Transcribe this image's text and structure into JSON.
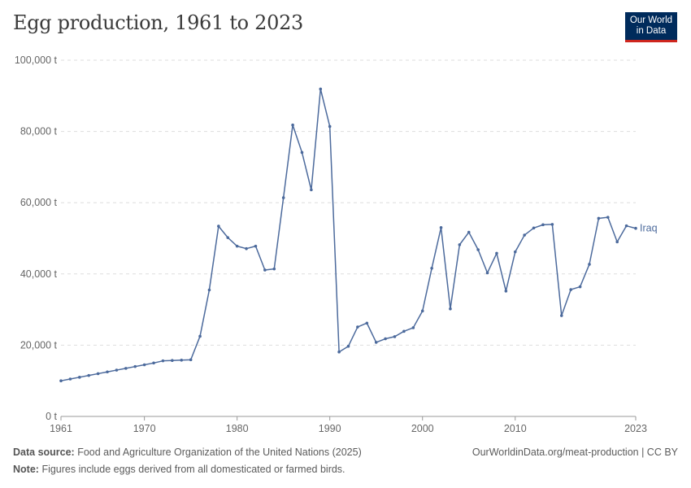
{
  "title": "Egg production, 1961 to 2023",
  "logo": {
    "line1": "Our World",
    "line2": "in Data"
  },
  "footer": {
    "source_label": "Data source:",
    "source_text": "Food and Agriculture Organization of the United Nations (2025)",
    "note_label": "Note:",
    "note_text": "Figures include eggs derived from all domesticated or farmed birds.",
    "url": "OurWorldinData.org/meat-production | CC BY"
  },
  "chart_data": {
    "type": "line",
    "title": "Egg production, 1961 to 2023",
    "xlim": [
      1961,
      2023
    ],
    "ylim": [
      0,
      100000
    ],
    "x_ticks": [
      1961,
      1970,
      1980,
      1990,
      2000,
      2010,
      2023
    ],
    "y_ticks": [
      0,
      20000,
      40000,
      60000,
      80000,
      100000
    ],
    "y_tick_labels": [
      "0 t",
      "20,000 t",
      "40,000 t",
      "60,000 t",
      "80,000 t",
      "100,000 t"
    ],
    "grid": "horizontal dashed",
    "line_color": "#4c6a9c",
    "series": [
      {
        "name": "Iraq",
        "x": [
          1961,
          1962,
          1963,
          1964,
          1965,
          1966,
          1967,
          1968,
          1969,
          1970,
          1971,
          1972,
          1973,
          1974,
          1975,
          1976,
          1977,
          1978,
          1979,
          1980,
          1981,
          1982,
          1983,
          1984,
          1985,
          1986,
          1987,
          1988,
          1989,
          1990,
          1991,
          1992,
          1993,
          1994,
          1995,
          1996,
          1997,
          1998,
          1999,
          2000,
          2001,
          2002,
          2003,
          2004,
          2005,
          2006,
          2007,
          2008,
          2009,
          2010,
          2011,
          2012,
          2013,
          2014,
          2015,
          2016,
          2017,
          2018,
          2019,
          2020,
          2021,
          2022,
          2023
        ],
        "y": [
          10000,
          10500,
          11000,
          11500,
          12000,
          12500,
          13000,
          13500,
          14000,
          14500,
          15000,
          15600,
          15700,
          15800,
          15900,
          22500,
          35500,
          53400,
          50200,
          47800,
          47100,
          47800,
          41100,
          41400,
          61400,
          81800,
          74100,
          63600,
          91900,
          81400,
          18100,
          19700,
          25100,
          26200,
          20800,
          21800,
          22400,
          23900,
          24900,
          29600,
          41600,
          53000,
          30200,
          48200,
          51700,
          46800,
          40300,
          45800,
          35200,
          46200,
          50900,
          52900,
          53800,
          53900,
          28300,
          35600,
          36400,
          42700,
          55600,
          55900,
          49000,
          53500,
          52800
        ]
      }
    ]
  }
}
